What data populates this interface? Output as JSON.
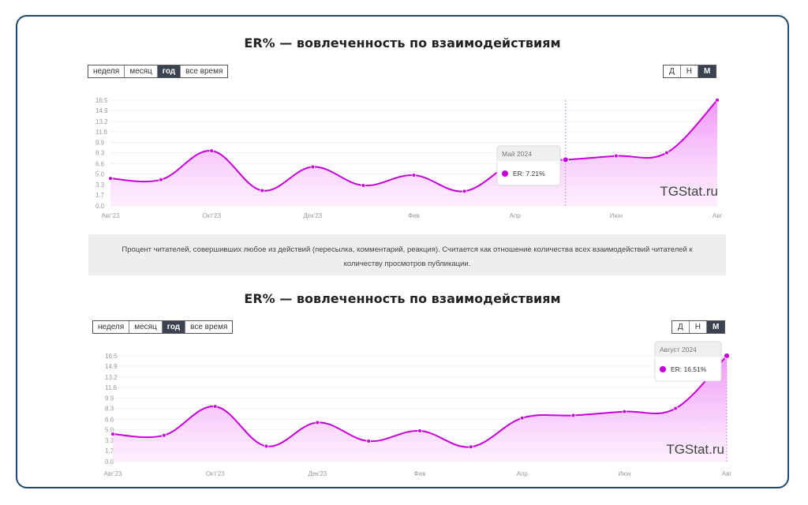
{
  "colors": {
    "line": "#c800dc",
    "fill_top": "#ef90f7",
    "fill_bottom": "#fbe4fd",
    "border": "#1f4a6e",
    "active_bg": "#3c4350"
  },
  "top": {
    "title": "ER% — вовлеченность по взаимодействиям",
    "period_buttons": [
      "неделя",
      "месяц",
      "год",
      "все время"
    ],
    "period_active": "год",
    "scale_buttons": [
      "Д",
      "Н",
      "М"
    ],
    "scale_active": "М",
    "tooltip": {
      "title": "Май 2024",
      "label": "ER:",
      "value": "7.21%"
    },
    "watermark": "TGStat.ru",
    "description": "Процент читателей, совершивших любое из действий (пересылка, комментарий, реакция). Считается как отношение количества всех взаимодействий читателей к количеству просмотров публикации."
  },
  "bottom": {
    "title": "ER% — вовлеченность по взаимодействиям",
    "period_buttons": [
      "неделя",
      "месяц",
      "год",
      "все время"
    ],
    "period_active": "год",
    "scale_buttons": [
      "Д",
      "Н",
      "М"
    ],
    "scale_active": "М",
    "tooltip": {
      "title": "Август 2024",
      "label": "ER:",
      "value": "16.51%"
    },
    "watermark": "TGStat.ru"
  },
  "chart_data": [
    {
      "type": "area",
      "title": "ER% — вовлеченность по взаимодействиям",
      "x": [
        "Авг'23",
        "Сен'23",
        "Окт'23",
        "Ноя'23",
        "Дек'23",
        "Янв'24",
        "Фев'24",
        "Мар'24",
        "Апр'24",
        "Май'24",
        "Июн'24",
        "Июл'24",
        "Авг'24"
      ],
      "series": [
        {
          "values": [
            4.3,
            4.1,
            8.6,
            2.4,
            6.1,
            3.2,
            4.8,
            2.3,
            6.8,
            7.21,
            7.8,
            8.3,
            16.51
          ]
        }
      ],
      "x_tick_labels": [
        "Авг'23",
        "Окт'23",
        "Дек'23",
        "Фев",
        "Апр",
        "Июн",
        "Авг"
      ],
      "y_ticks": [
        "0.0",
        "1.7",
        "3.3",
        "5.0",
        "6.6",
        "8.3",
        "9.9",
        "11.6",
        "13.2",
        "14.9",
        "16.5"
      ],
      "ylim": [
        0,
        16.5
      ],
      "grid": true,
      "highlighted_point": "Май'24"
    },
    {
      "type": "area",
      "title": "ER% — вовлеченность по взаимодействиям",
      "x": [
        "Авг'23",
        "Сен'23",
        "Окт'23",
        "Ноя'23",
        "Дек'23",
        "Янв'24",
        "Фев'24",
        "Мар'24",
        "Апр'24",
        "Май'24",
        "Июн'24",
        "Июл'24",
        "Авг'24"
      ],
      "series": [
        {
          "values": [
            4.3,
            4.1,
            8.6,
            2.4,
            6.1,
            3.2,
            4.8,
            2.3,
            6.8,
            7.21,
            7.8,
            8.3,
            16.51
          ]
        }
      ],
      "x_tick_labels": [
        "Авг'23",
        "Окт'23",
        "Дек'23",
        "Фев",
        "Апр",
        "Июн",
        "Авг"
      ],
      "y_ticks": [
        "0.0",
        "1.7",
        "3.3",
        "5.0",
        "6.6",
        "8.3",
        "9.9",
        "11.6",
        "13.2",
        "14.9",
        "16.5"
      ],
      "ylim": [
        0,
        16.5
      ],
      "grid": true,
      "highlighted_point": "Авг'24"
    }
  ]
}
